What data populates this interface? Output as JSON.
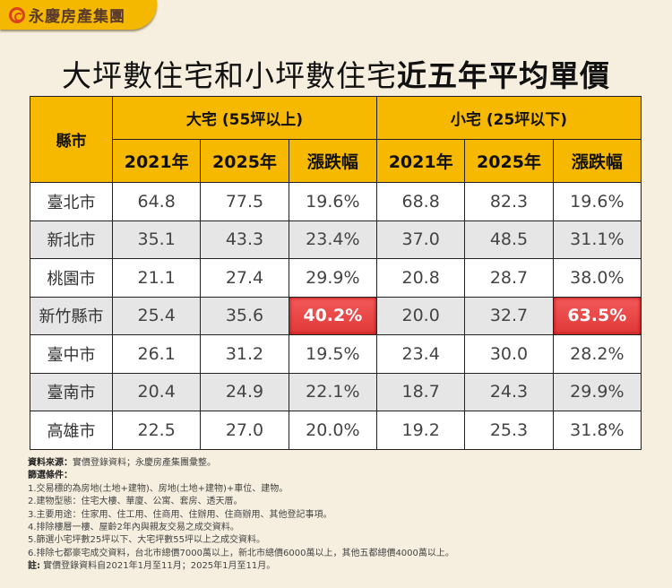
{
  "brand": {
    "name": "永慶房產集團",
    "accent": "#f5b800",
    "highlight": "#e84040"
  },
  "title": {
    "part1": "大坪數住宅和小坪數住宅",
    "part2": "近五年平均單價"
  },
  "chart_data": {
    "type": "table",
    "title": "大坪數住宅和小坪數住宅近五年平均單價",
    "city_header": "縣市",
    "groups": [
      "大宅 (55坪以上)",
      "小宅 (25坪以下)"
    ],
    "columns": [
      "2021年",
      "2025年",
      "漲跌幅"
    ],
    "rows": [
      {
        "city": "臺北市",
        "large": [
          "64.8",
          "77.5",
          "19.6%"
        ],
        "small": [
          "68.8",
          "82.3",
          "19.6%"
        ]
      },
      {
        "city": "新北市",
        "large": [
          "35.1",
          "43.3",
          "23.4%"
        ],
        "small": [
          "37.0",
          "48.5",
          "31.1%"
        ]
      },
      {
        "city": "桃園市",
        "large": [
          "21.1",
          "27.4",
          "29.9%"
        ],
        "small": [
          "20.8",
          "28.7",
          "38.0%"
        ]
      },
      {
        "city": "新竹縣市",
        "large": [
          "25.4",
          "35.6",
          "40.2%"
        ],
        "small": [
          "20.0",
          "32.7",
          "63.5%"
        ]
      },
      {
        "city": "臺中市",
        "large": [
          "26.1",
          "31.2",
          "19.5%"
        ],
        "small": [
          "23.4",
          "30.0",
          "28.2%"
        ]
      },
      {
        "city": "臺南市",
        "large": [
          "20.4",
          "24.9",
          "22.1%"
        ],
        "small": [
          "18.7",
          "24.3",
          "29.9%"
        ]
      },
      {
        "city": "高雄市",
        "large": [
          "22.5",
          "27.0",
          "20.0%"
        ],
        "small": [
          "19.2",
          "25.3",
          "31.8%"
        ]
      }
    ],
    "highlighted": [
      "新竹縣市 大宅 漲跌幅",
      "新竹縣市 小宅 漲跌幅"
    ]
  },
  "notes": {
    "source_label": "資料來源：",
    "source": "實價登錄資料；永慶房產集團彙整。",
    "filter_label": "篩選條件：",
    "items": [
      "1.交易標的為房地(土地+建物)、房地(土地+建物)+車位、建物。",
      "2.建物型態：住宅大樓、華廈、公寓、套房、透天厝。",
      "3.主要用途：住家用、住工用、住商用、住辦用、住商辦用、其他登記事項。",
      "4.排除樓層一樓、屋齡2年內與親友交易之成交資料。",
      "5.篩選小宅坪數25坪以下、大宅坪數55坪以上之成交資料。",
      "6.排除七都豪宅成交資料，台北市總價7000萬以上，新北市總價6000萬以上，其他五都總價4000萬以上。"
    ],
    "note_label": "註:",
    "note": " 實價登錄資料自2021年1月至11月；2025年1月至11月。"
  }
}
